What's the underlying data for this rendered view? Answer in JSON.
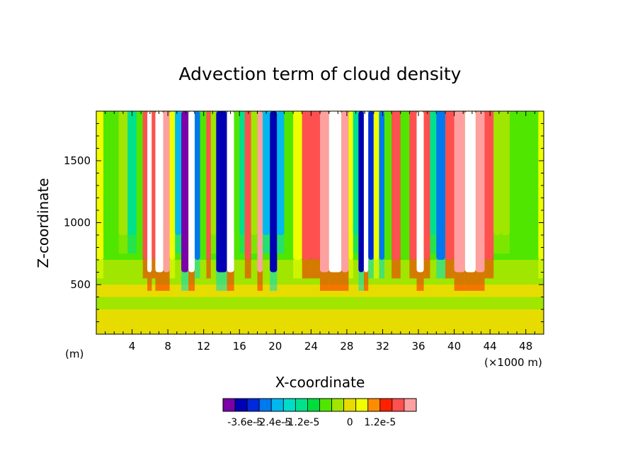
{
  "chart_data": {
    "type": "heatmap",
    "title": "Advection term of cloud density",
    "xlabel": "X-coordinate",
    "ylabel": "Z-coordinate",
    "x_units": "(m)",
    "x_multiplier": "(×1000 m)",
    "xlim": [
      0,
      50
    ],
    "ylim": [
      100,
      1900
    ],
    "x_ticks": [
      4,
      8,
      12,
      16,
      20,
      24,
      28,
      32,
      36,
      40,
      44,
      48
    ],
    "y_ticks": [
      500,
      1000,
      1500
    ],
    "colorbar": {
      "colors": [
        "#7a00a8",
        "#0000b4",
        "#0028dc",
        "#0078ee",
        "#00b8ee",
        "#00dcc8",
        "#00e18c",
        "#00dc3c",
        "#50e600",
        "#a0e600",
        "#e6dc00",
        "#f0ff00",
        "#ff8c00",
        "#ff2000",
        "#ff5050",
        "#ffa0a0"
      ],
      "labels": [
        "-3.6e-5",
        "-2.4e-5",
        "-1.2e-5",
        "0",
        "1.2e-5"
      ]
    },
    "bands": [
      {
        "x": [
          0,
          0.8
        ],
        "level": 3
      },
      {
        "x": [
          0.8,
          2.5
        ],
        "level": 1
      },
      {
        "x": [
          2.5,
          3.5
        ],
        "level": 0
      },
      {
        "x": [
          3.5,
          4.5
        ],
        "level": -1
      },
      {
        "x": [
          4.5,
          5.2
        ],
        "level": 1
      },
      {
        "x": [
          5.2,
          5.7
        ],
        "level": 4
      },
      {
        "x": [
          5.7,
          6.2
        ],
        "level": 6
      },
      {
        "x": [
          6.2,
          6.6
        ],
        "level": 4
      },
      {
        "x": [
          6.6,
          7.5
        ],
        "level": 6
      },
      {
        "x": [
          7.5,
          8.2
        ],
        "level": 5
      },
      {
        "x": [
          8.2,
          8.8
        ],
        "level": 3
      },
      {
        "x": [
          8.8,
          9.5
        ],
        "level": -2
      },
      {
        "x": [
          9.5,
          10.3
        ],
        "level": -6
      },
      {
        "x": [
          10.3,
          11.0
        ],
        "level": 6
      },
      {
        "x": [
          11.0,
          11.6
        ],
        "level": -3
      },
      {
        "x": [
          11.6,
          12.3
        ],
        "level": 1
      },
      {
        "x": [
          12.3,
          12.8
        ],
        "level": 4
      },
      {
        "x": [
          12.8,
          13.4
        ],
        "level": 2
      },
      {
        "x": [
          13.4,
          14.6
        ],
        "level": -5
      },
      {
        "x": [
          14.6,
          15.4
        ],
        "level": 6
      },
      {
        "x": [
          15.4,
          16.0
        ],
        "level": 1
      },
      {
        "x": [
          16.0,
          16.6
        ],
        "level": -1
      },
      {
        "x": [
          16.6,
          17.3
        ],
        "level": 4
      },
      {
        "x": [
          17.3,
          18.0
        ],
        "level": 2
      },
      {
        "x": [
          18.0,
          18.6
        ],
        "level": 5
      },
      {
        "x": [
          18.6,
          19.4
        ],
        "level": -2
      },
      {
        "x": [
          19.4,
          20.2
        ],
        "level": -5
      },
      {
        "x": [
          20.2,
          21.0
        ],
        "level": -2
      },
      {
        "x": [
          21.0,
          22.0
        ],
        "level": 1
      },
      {
        "x": [
          22.0,
          23.0
        ],
        "level": 3
      },
      {
        "x": [
          23.0,
          24.0
        ],
        "level": 4
      },
      {
        "x": [
          24.0,
          25.0
        ],
        "level": 4
      },
      {
        "x": [
          25.0,
          26.0
        ],
        "level": 5
      },
      {
        "x": [
          26.0,
          27.4
        ],
        "level": 6
      },
      {
        "x": [
          27.4,
          28.2
        ],
        "level": 5
      },
      {
        "x": [
          28.2,
          28.7
        ],
        "level": 3
      },
      {
        "x": [
          28.7,
          29.3
        ],
        "level": -1
      },
      {
        "x": [
          29.3,
          29.9
        ],
        "level": -5
      },
      {
        "x": [
          29.9,
          30.4
        ],
        "level": 6
      },
      {
        "x": [
          30.4,
          31.0
        ],
        "level": -4
      },
      {
        "x": [
          31.0,
          31.6
        ],
        "level": 3
      },
      {
        "x": [
          31.6,
          32.2
        ],
        "level": -3
      },
      {
        "x": [
          32.2,
          33.0
        ],
        "level": 1
      },
      {
        "x": [
          33.0,
          34.0
        ],
        "level": 4
      },
      {
        "x": [
          34.0,
          35.0
        ],
        "level": 1
      },
      {
        "x": [
          35.0,
          35.8
        ],
        "level": 4
      },
      {
        "x": [
          35.8,
          36.6
        ],
        "level": 6
      },
      {
        "x": [
          36.6,
          37.3
        ],
        "level": 4
      },
      {
        "x": [
          37.3,
          38.0
        ],
        "level": -1
      },
      {
        "x": [
          38.0,
          39.0
        ],
        "level": -3
      },
      {
        "x": [
          39.0,
          40.0
        ],
        "level": 4
      },
      {
        "x": [
          40.0,
          41.2
        ],
        "level": 5
      },
      {
        "x": [
          41.2,
          42.4
        ],
        "level": 6
      },
      {
        "x": [
          42.4,
          43.4
        ],
        "level": 5
      },
      {
        "x": [
          43.4,
          44.4
        ],
        "level": 4
      },
      {
        "x": [
          44.4,
          45.2
        ],
        "level": 2
      },
      {
        "x": [
          45.2,
          46.2
        ],
        "level": 0
      },
      {
        "x": [
          46.2,
          49.4
        ],
        "level": 1
      },
      {
        "x": [
          49.4,
          50.0
        ],
        "level": 3
      }
    ]
  }
}
